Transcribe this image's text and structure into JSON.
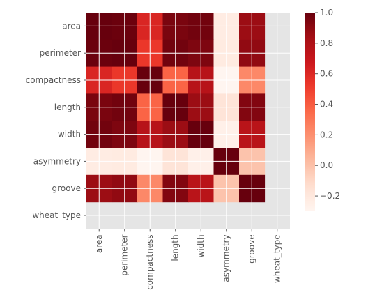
{
  "chart_data": {
    "type": "heatmap",
    "title": "",
    "xlabel": "",
    "ylabel": "",
    "x_categories": [
      "area",
      "perimeter",
      "compactness",
      "length",
      "width",
      "asymmetry",
      "groove",
      "wheat_type"
    ],
    "y_categories": [
      "area",
      "perimeter",
      "compactness",
      "length",
      "width",
      "asymmetry",
      "groove",
      "wheat_type"
    ],
    "colormap": "Reds",
    "value_range": [
      -0.3,
      1.0
    ],
    "missing_color": "#e5e5e5",
    "grid": true,
    "values": [
      [
        1.0,
        0.99,
        0.61,
        0.95,
        0.97,
        -0.23,
        0.86,
        null
      ],
      [
        0.99,
        1.0,
        0.53,
        0.97,
        0.94,
        -0.22,
        0.89,
        null
      ],
      [
        0.61,
        0.53,
        1.0,
        0.37,
        0.76,
        -0.33,
        0.23,
        null
      ],
      [
        0.95,
        0.97,
        0.37,
        1.0,
        0.86,
        -0.17,
        0.93,
        null
      ],
      [
        0.97,
        0.94,
        0.76,
        0.86,
        1.0,
        -0.26,
        0.75,
        null
      ],
      [
        -0.23,
        -0.22,
        -0.33,
        -0.17,
        -0.26,
        1.0,
        -0.01,
        null
      ],
      [
        0.86,
        0.89,
        0.23,
        0.93,
        0.75,
        -0.01,
        1.0,
        null
      ],
      [
        null,
        null,
        null,
        null,
        null,
        null,
        null,
        null
      ]
    ],
    "colorbar": {
      "ticks": [
        1.0,
        0.8,
        0.6,
        0.4,
        0.2,
        0.0,
        -0.2
      ],
      "tick_labels": [
        "1.0",
        "0.8",
        "0.6",
        "0.4",
        "0.2",
        "0.0",
        "−0.2"
      ]
    }
  }
}
